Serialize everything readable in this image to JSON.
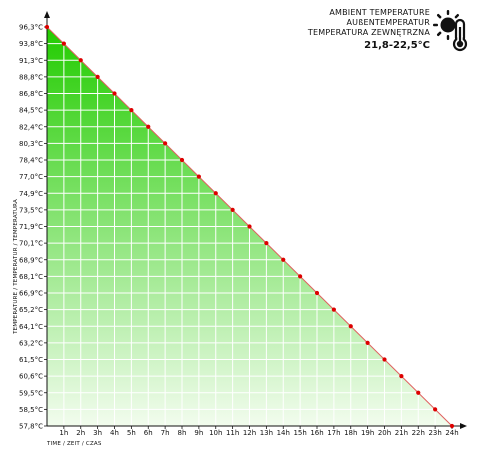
{
  "legend": {
    "line1": "AMBIENT TEMPERATURE",
    "line2": "AUßENTEMPERATUR",
    "line3": "TEMPERATURA ZEWNĘTRZNA",
    "range": "21,8-22,5°C",
    "icon": "sun-thermometer-icon"
  },
  "colors": {
    "fill_top": "#22cc00",
    "fill_bottom": "#f2fcee",
    "line": "#e06060",
    "point": "#dd0000",
    "grid": "#ffffff",
    "axis": "#111111"
  },
  "chart_data": {
    "type": "line",
    "xlabel": "TIME / ZEIT / CZAS",
    "ylabel": "TEMPERATURE / TEMPERATUR / TEMPERATURA",
    "x": [
      0,
      1,
      2,
      3,
      4,
      5,
      6,
      7,
      8,
      9,
      10,
      11,
      12,
      13,
      14,
      15,
      16,
      17,
      18,
      19,
      20,
      21,
      22,
      23,
      24
    ],
    "x_tick_labels": [
      "1h",
      "2h",
      "3h",
      "4h",
      "5h",
      "6h",
      "7h",
      "8h",
      "9h",
      "10h",
      "11h",
      "12h",
      "13h",
      "14h",
      "15h",
      "16h",
      "17h",
      "18h",
      "19h",
      "20h",
      "21h",
      "22h",
      "23h",
      "24h"
    ],
    "y_tick_labels": [
      "57,8°C",
      "58,5°C",
      "59,5°C",
      "60,6°C",
      "61,5°C",
      "63,2°C",
      "64,1°C",
      "65,2°C",
      "66,9°C",
      "68,1°C",
      "68,9°C",
      "70,1°C",
      "71,9°C",
      "73,5°C",
      "74,9°C",
      "77,0°C",
      "78,4°C",
      "80,3°C",
      "82,4°C",
      "84,5°C",
      "86,8°C",
      "88,8°C",
      "91,3°C",
      "93,8°C",
      "96,3°C"
    ],
    "series": [
      {
        "values": [
          96.3,
          93.8,
          91.3,
          88.8,
          86.8,
          84.5,
          82.4,
          80.3,
          78.4,
          77.0,
          74.9,
          73.5,
          71.9,
          70.1,
          68.9,
          68.1,
          66.9,
          65.2,
          64.1,
          63.2,
          61.5,
          60.6,
          59.5,
          58.5,
          57.8
        ]
      }
    ],
    "grid": true,
    "fill_under": true
  }
}
